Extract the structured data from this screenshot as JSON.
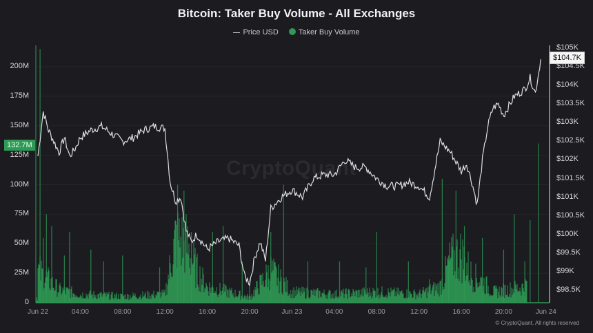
{
  "title": "Bitcoin: Taker Buy Volume - All Exchanges",
  "legend": [
    {
      "label": "Price USD",
      "type": "line",
      "color": "#d9d9de"
    },
    {
      "label": "Taker Buy Volume",
      "type": "dot",
      "color": "#2e9a55"
    }
  ],
  "watermark": "CryptoQuant",
  "copyright": "© CryptoQuant. All rights reserved",
  "badges": {
    "volume_current": "132.7M",
    "price_current": "$104.7K"
  },
  "colors": {
    "background": "#1b1b20",
    "volume": "#2e9a55",
    "price": "#dedee3",
    "grid": "#25252c",
    "axis": "#9a9aa2"
  },
  "chart_data": {
    "type": "bar+line",
    "title": "Bitcoin: Taker Buy Volume - All Exchanges",
    "x_ticks": [
      "Jun 22",
      "04:00",
      "08:00",
      "12:00",
      "16:00",
      "20:00",
      "Jun 23",
      "04:00",
      "08:00",
      "12:00",
      "16:00",
      "20:00",
      "Jun 24"
    ],
    "y_left": {
      "label": "Taker Buy Volume",
      "ticks": [
        "0",
        "25M",
        "50M",
        "75M",
        "100M",
        "125M",
        "150M",
        "175M",
        "200M"
      ],
      "range": [
        0,
        220
      ]
    },
    "y_right": {
      "label": "Price USD",
      "ticks": [
        "$98.5K",
        "$99K",
        "$99.5K",
        "$100K",
        "$100.5K",
        "$101K",
        "$101.5K",
        "$102K",
        "$102.5K",
        "$103K",
        "$103.5K",
        "$104K",
        "$104.5K",
        "$105K"
      ],
      "range": [
        98.2,
        105.2
      ]
    },
    "series": [
      {
        "name": "Price USD",
        "type": "line",
        "unit": "K USD",
        "x_hours": [
          0,
          0.5,
          1,
          1.5,
          2,
          2.5,
          3,
          3.5,
          4,
          5,
          6,
          7,
          8,
          9,
          10,
          11,
          12,
          12.5,
          13,
          13.5,
          14,
          14.5,
          15,
          16,
          17,
          18,
          19,
          19.5,
          20,
          20.5,
          21,
          21.5,
          22,
          23,
          24,
          25,
          26,
          27,
          28,
          29,
          30,
          31,
          32,
          33,
          34,
          35,
          36,
          37,
          38,
          39,
          40,
          40.5,
          41,
          41.5,
          42,
          42.5,
          43,
          43.5,
          44,
          45,
          46,
          46.5,
          47,
          47.5
        ],
        "values": [
          102.1,
          103.3,
          102.8,
          102.5,
          102.2,
          102.6,
          102.1,
          102.3,
          102.6,
          102.8,
          102.9,
          102.7,
          102.5,
          102.6,
          102.8,
          102.9,
          102.85,
          101.4,
          100.9,
          101.0,
          100.1,
          99.8,
          100.0,
          99.6,
          99.8,
          99.9,
          99.7,
          98.9,
          98.7,
          99.4,
          99.8,
          99.3,
          100.7,
          101.0,
          101.2,
          101.0,
          101.5,
          101.6,
          101.6,
          102.0,
          101.8,
          101.8,
          101.5,
          101.3,
          101.3,
          101.4,
          101.3,
          101.0,
          102.5,
          102.2,
          101.7,
          101.9,
          101.4,
          100.8,
          102.0,
          102.9,
          103.4,
          103.5,
          103.2,
          103.7,
          103.9,
          104.2,
          103.8,
          104.7
        ]
      },
      {
        "name": "Taker Buy Volume",
        "type": "bar",
        "unit": "M",
        "peaks_hours": [
          0.2,
          0.5,
          0.8,
          1.3,
          2.5,
          3.0,
          5.0,
          6.2,
          8.0,
          11.5,
          13.2,
          13.8,
          14.5,
          16.5,
          17.5,
          19.3,
          20.0,
          22.0,
          23.2,
          25.5,
          28.5,
          31.0,
          32.0,
          35.0,
          37.0,
          38.2,
          38.8,
          39.5,
          40.3,
          42.0,
          44.0,
          45.0,
          46.0,
          46.5,
          47.3
        ],
        "peak_values": [
          215,
          55,
          75,
          65,
          40,
          60,
          45,
          35,
          40,
          30,
          100,
          95,
          60,
          60,
          65,
          35,
          20,
          60,
          100,
          35,
          35,
          30,
          60,
          35,
          20,
          105,
          40,
          95,
          65,
          55,
          45,
          75,
          35,
          70,
          135
        ],
        "baseline_profile": [
          [
            0,
            30
          ],
          [
            2,
            12
          ],
          [
            4,
            8
          ],
          [
            8,
            6
          ],
          [
            12,
            8
          ],
          [
            13,
            60
          ],
          [
            14,
            55
          ],
          [
            15,
            30
          ],
          [
            16,
            15
          ],
          [
            18,
            10
          ],
          [
            20,
            5
          ],
          [
            22,
            30
          ],
          [
            23,
            20
          ],
          [
            24,
            10
          ],
          [
            28,
            8
          ],
          [
            32,
            10
          ],
          [
            36,
            8
          ],
          [
            38,
            15
          ],
          [
            39,
            40
          ],
          [
            40,
            45
          ],
          [
            41,
            25
          ],
          [
            42,
            20
          ],
          [
            43,
            10
          ],
          [
            46,
            15
          ],
          [
            47,
            30
          ],
          [
            47.5,
            20
          ]
        ]
      }
    ]
  }
}
